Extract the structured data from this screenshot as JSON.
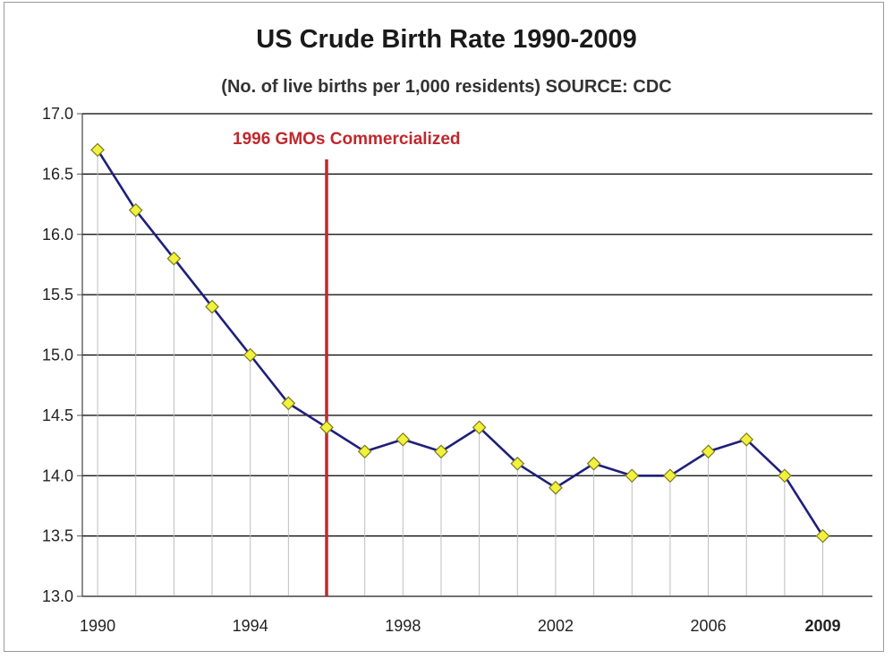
{
  "chart_data": {
    "type": "line",
    "title": "US Crude Birth Rate 1990-2009",
    "subtitle": "(No. of live births per 1,000 residents) SOURCE: CDC",
    "xlabel": "",
    "ylabel": "",
    "x": [
      1990,
      1991,
      1992,
      1993,
      1994,
      1995,
      1996,
      1997,
      1998,
      1999,
      2000,
      2001,
      2002,
      2003,
      2004,
      2005,
      2006,
      2007,
      2008,
      2009
    ],
    "series": [
      {
        "values": [
          16.7,
          16.2,
          15.8,
          15.4,
          15.0,
          14.6,
          14.4,
          14.2,
          14.3,
          14.2,
          14.4,
          14.1,
          13.9,
          14.1,
          14.0,
          14.0,
          14.2,
          14.3,
          14.0,
          13.5
        ]
      }
    ],
    "xlim": [
      1990,
      2009
    ],
    "ylim": [
      13.0,
      17.0
    ],
    "y_ticks": [
      "13.0",
      "13.5",
      "14.0",
      "14.5",
      "15.0",
      "15.5",
      "16.0",
      "16.5",
      "17.0"
    ],
    "x_ticks": [
      {
        "label": "1990",
        "value": 1990,
        "bold": false
      },
      {
        "label": "1994",
        "value": 1994,
        "bold": false
      },
      {
        "label": "1998",
        "value": 1998,
        "bold": false
      },
      {
        "label": "2002",
        "value": 2002,
        "bold": false
      },
      {
        "label": "2006",
        "value": 2006,
        "bold": false
      },
      {
        "label": "2009",
        "value": 2009,
        "bold": true
      }
    ],
    "grid": true,
    "legend": "none",
    "annotation": {
      "text": "1996 GMOs Commercialized",
      "x": 1996,
      "color": "#c0282d"
    },
    "colors": {
      "line": "#1f1f7a",
      "marker_fill": "#f2f23c",
      "marker_stroke": "#7a7a20",
      "drop_line": "#bdbdbd",
      "grid": "#000000"
    }
  }
}
